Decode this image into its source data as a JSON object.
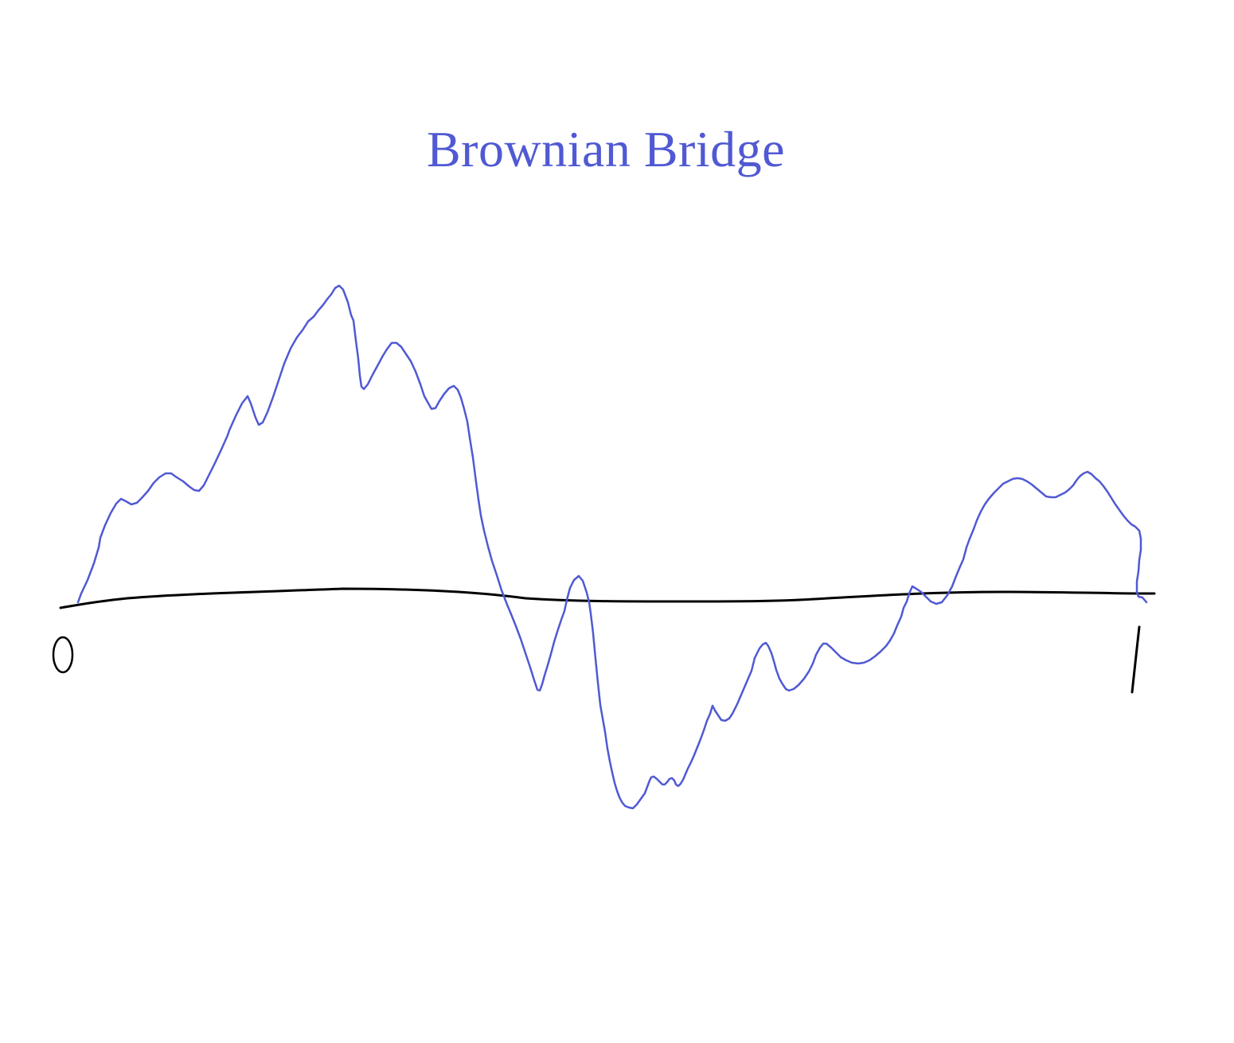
{
  "title": "Brownian Bridge",
  "axis": {
    "start_label": "0",
    "end_label": "1"
  },
  "colors": {
    "title": "#5059d3",
    "path": "#5059d3",
    "axis": "#000000",
    "background": "#ffffff"
  }
}
